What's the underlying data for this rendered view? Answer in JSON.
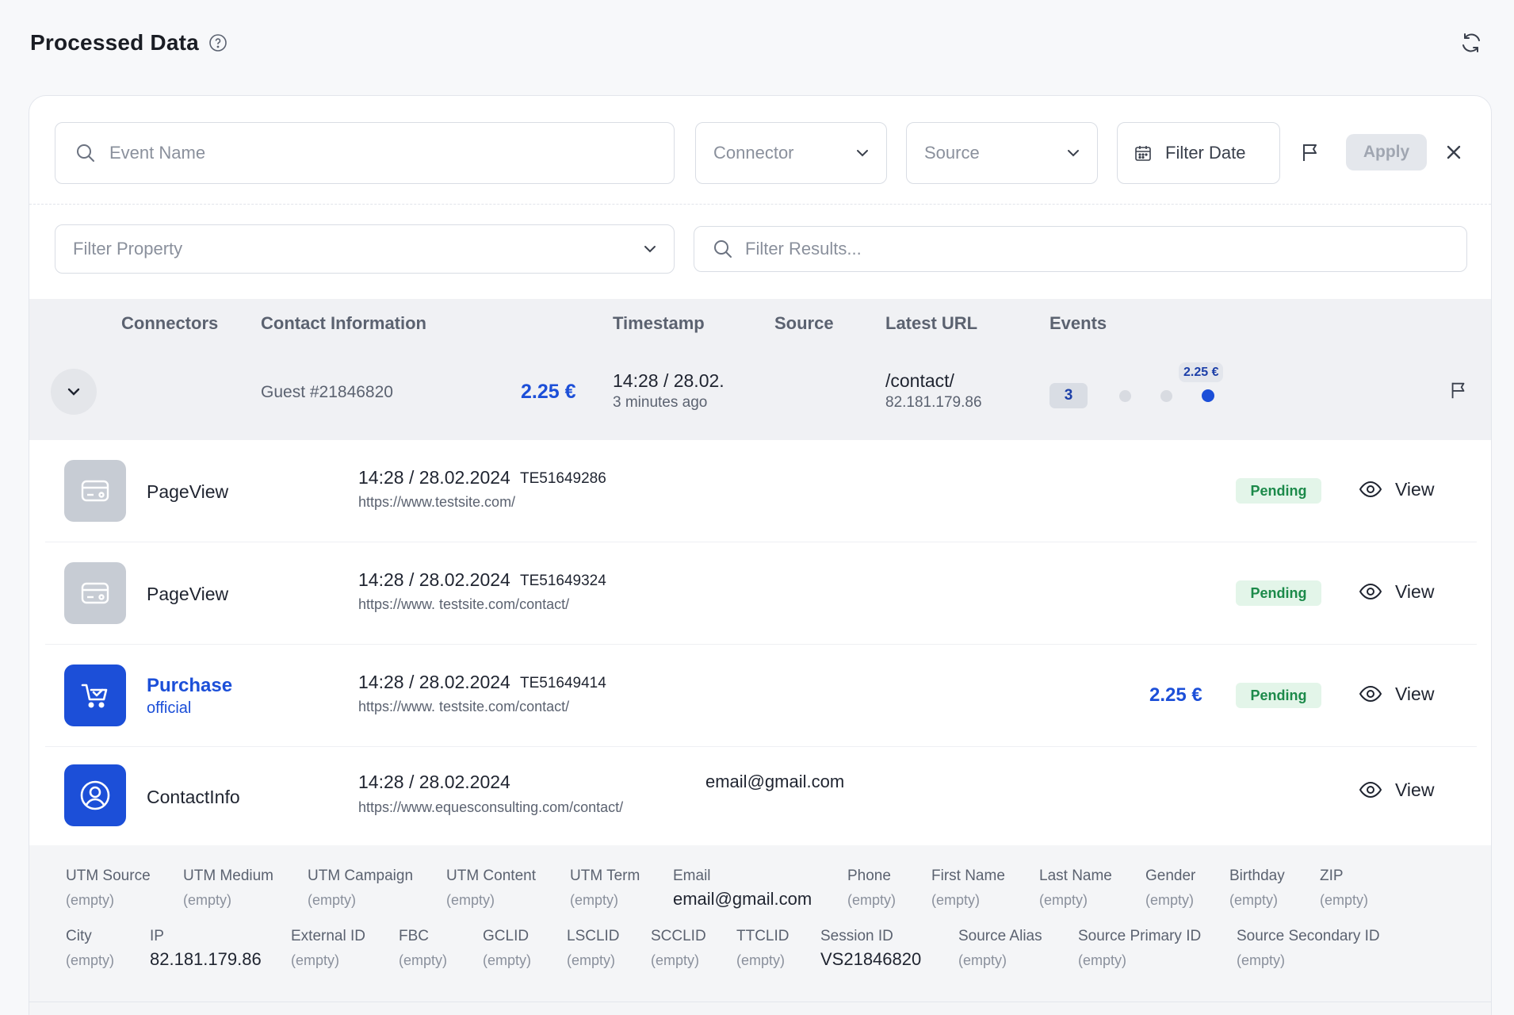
{
  "header": {
    "title": "Processed Data"
  },
  "filters": {
    "event_name_placeholder": "Event Name",
    "connector_placeholder": "Connector",
    "source_placeholder": "Source",
    "filter_date_label": "Filter Date",
    "apply_label": "Apply",
    "filter_property_placeholder": "Filter Property",
    "filter_results_placeholder": "Filter Results..."
  },
  "table": {
    "columns": [
      "Connectors",
      "Contact Information",
      "Timestamp",
      "Source",
      "Latest URL",
      "Events"
    ]
  },
  "group": {
    "guest": "Guest #21846820",
    "amount": "2.25 €",
    "timestamp": "14:28 / 28.02.",
    "relative_time": "3 minutes ago",
    "latest_url": "/contact/",
    "ip": "82.181.179.86",
    "events_count": "3",
    "tooltip_amount": "2.25 €"
  },
  "events": [
    {
      "name": "PageView",
      "datetime": "14:28 / 28.02.2024",
      "code": "TE51649286",
      "url": "https://www.testsite.com/",
      "status": "Pending",
      "view_label": "View",
      "icon": "id-card-icon"
    },
    {
      "name": "PageView",
      "datetime": "14:28 / 28.02.2024",
      "code": "TE51649324",
      "url": "https://www. testsite.com/contact/",
      "status": "Pending",
      "view_label": "View",
      "icon": "id-card-icon"
    },
    {
      "name": "Purchase",
      "sub": "official",
      "datetime": "14:28 / 28.02.2024",
      "code": "TE51649414",
      "url": "https://www. testsite.com/contact/",
      "amount": "2.25 €",
      "status": "Pending",
      "view_label": "View",
      "icon": "shopping-cart-icon"
    },
    {
      "name": "ContactInfo",
      "datetime": "14:28 / 28.02.2024",
      "url": "https://www.equesconsulting.com/contact/",
      "email": "email@gmail.com",
      "view_label": "View",
      "icon": "user-circle-icon"
    }
  ],
  "properties": {
    "row1": [
      {
        "label": "UTM Source",
        "value": "(empty)"
      },
      {
        "label": "UTM Medium",
        "value": "(empty)"
      },
      {
        "label": "UTM Campaign",
        "value": "(empty)"
      },
      {
        "label": "UTM Content",
        "value": "(empty)"
      },
      {
        "label": "UTM Term",
        "value": "(empty)"
      },
      {
        "label": "Email",
        "value": "email@gmail.com"
      },
      {
        "label": "Phone",
        "value": "(empty)"
      },
      {
        "label": "First Name",
        "value": "(empty)"
      },
      {
        "label": "Last Name",
        "value": "(empty)"
      },
      {
        "label": "Gender",
        "value": "(empty)"
      },
      {
        "label": "Birthday",
        "value": "(empty)"
      },
      {
        "label": "ZIP",
        "value": "(empty)"
      }
    ],
    "row2": [
      {
        "label": "City",
        "value": "(empty)"
      },
      {
        "label": "IP",
        "value": "82.181.179.86"
      },
      {
        "label": "External ID",
        "value": "(empty)"
      },
      {
        "label": "FBC",
        "value": "(empty)"
      },
      {
        "label": "GCLID",
        "value": "(empty)"
      },
      {
        "label": "LSCLID",
        "value": "(empty)"
      },
      {
        "label": "SCCLID",
        "value": "(empty)"
      },
      {
        "label": "TTCLID",
        "value": "(empty)"
      },
      {
        "label": "Session ID",
        "value": "VS21846820"
      },
      {
        "label": "Source Alias",
        "value": "(empty)"
      },
      {
        "label": "Source Primary ID",
        "value": "(empty)"
      },
      {
        "label": "Source Secondary ID",
        "value": "(empty)"
      }
    ]
  },
  "colors": {
    "accent": "#1c4fd8",
    "success_bg": "#e3f5e9",
    "success_text": "#1c8a4a"
  }
}
